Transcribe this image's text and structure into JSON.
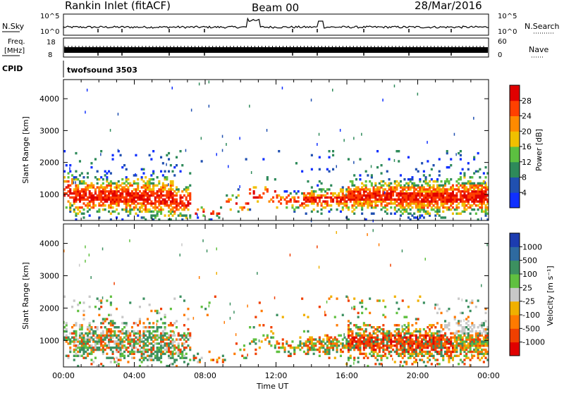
{
  "header": {
    "station": "Rankin Inlet (fitACF)",
    "beam": "Beam 00",
    "date": "28/Mar/2016"
  },
  "strip_labels": {
    "nsky": "N.Sky",
    "nsky_ticks": [
      "10^5",
      "10^0"
    ],
    "nsearch": "N.Search",
    "nsearch_ticks": [
      "10^5",
      "10^0"
    ],
    "freq_line1": "Freq.",
    "freq_line2": "[MHz]",
    "freq_ticks": [
      "18",
      "8"
    ],
    "nave": "Nave",
    "nave_ticks": [
      "60",
      "0"
    ],
    "cpid": "CPID",
    "cpid_value": "twofsound 3503"
  },
  "chart_data": [
    {
      "type": "heatmap",
      "panel": "power",
      "ylabel": "Slant Range [km]",
      "xlabel": "Time UT",
      "xticks": [
        "00:00",
        "04:00",
        "08:00",
        "12:00",
        "16:00",
        "20:00",
        "00:00"
      ],
      "yticks": [
        1000,
        2000,
        3000,
        4000
      ],
      "ylim": [
        180,
        4600
      ],
      "xlim_hours": [
        0,
        24
      ],
      "colorbar_label": "Power [dB]",
      "colorbar_ticks": [
        4,
        8,
        12,
        16,
        20,
        24,
        28
      ],
      "colorbar_colors": [
        "#1030ff",
        "#2050b0",
        "#2e8a5a",
        "#5cc040",
        "#f0c000",
        "#ff8a00",
        "#ff4000",
        "#e00000"
      ]
    },
    {
      "type": "heatmap",
      "panel": "velocity",
      "ylabel": "Slant Range [km]",
      "xlabel": "Time UT",
      "xticks": [
        "00:00",
        "04:00",
        "08:00",
        "12:00",
        "16:00",
        "20:00",
        "00:00"
      ],
      "yticks": [
        1000,
        2000,
        3000,
        4000
      ],
      "ylim": [
        180,
        4600
      ],
      "xlim_hours": [
        0,
        24
      ],
      "colorbar_label": "Velocity [m s⁻¹]",
      "colorbar_ticks": [
        "1000",
        "500",
        "100",
        "25",
        "-25",
        "-100",
        "-500",
        "-1000"
      ],
      "colorbar_colors": [
        "#1c3cb0",
        "#2e6aa0",
        "#3c9060",
        "#60c040",
        "#c8c8c8",
        "#f0b000",
        "#ff7a00",
        "#f04000",
        "#e00000"
      ]
    }
  ],
  "bottom_axis_label": "Time UT"
}
